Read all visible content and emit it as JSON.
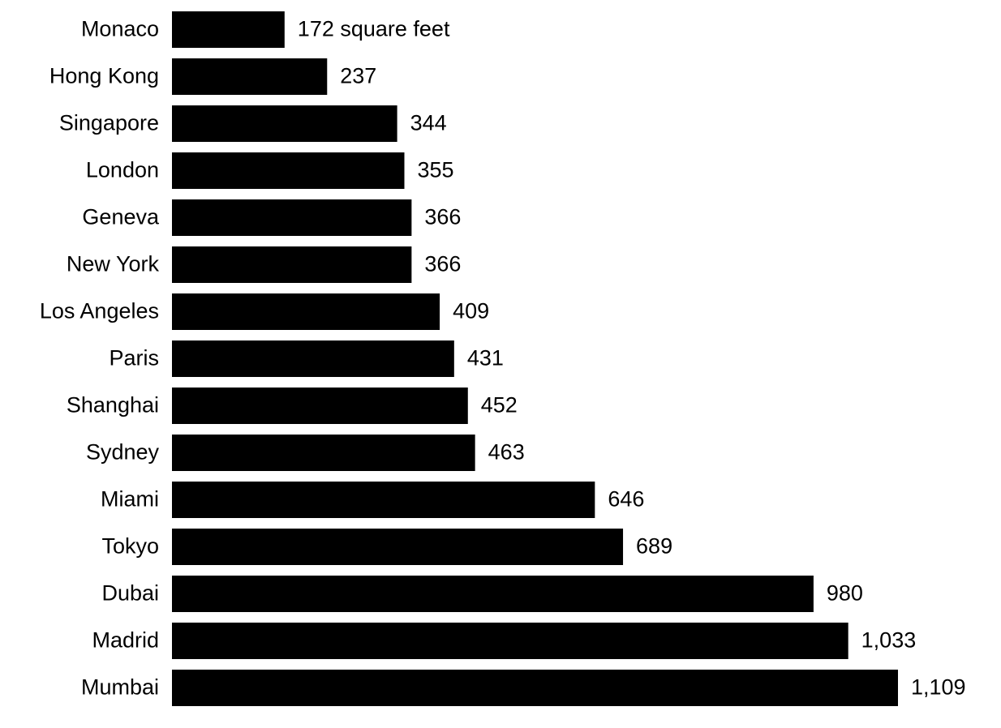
{
  "chart_data": {
    "type": "bar",
    "orientation": "horizontal",
    "color": "#000000",
    "categories": [
      "Monaco",
      "Hong Kong",
      "Singapore",
      "London",
      "Geneva",
      "New York",
      "Los Angeles",
      "Paris",
      "Shanghai",
      "Sydney",
      "Miami",
      "Tokyo",
      "Dubai",
      "Madrid",
      "Mumbai"
    ],
    "values": [
      172,
      237,
      344,
      355,
      366,
      366,
      409,
      431,
      452,
      463,
      646,
      689,
      980,
      1033,
      1109
    ],
    "value_labels": [
      "172 square feet",
      "237",
      "344",
      "355",
      "366",
      "366",
      "409",
      "431",
      "452",
      "463",
      "646",
      "689",
      "980",
      "1,033",
      "1,109"
    ]
  }
}
